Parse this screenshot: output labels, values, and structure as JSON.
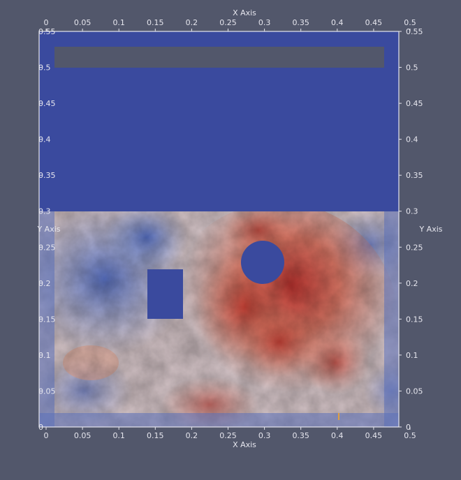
{
  "view": {
    "background": "#52576b",
    "axis_color": "#e6e6ee",
    "x_axis": {
      "title": "X Axis",
      "range": [
        0,
        0.5
      ],
      "ticks": [
        {
          "value": 0,
          "label": "0"
        },
        {
          "value": 0.05,
          "label": "0.05"
        },
        {
          "value": 0.1,
          "label": "0.1"
        },
        {
          "value": 0.15,
          "label": "0.15"
        },
        {
          "value": 0.2,
          "label": "0.2"
        },
        {
          "value": 0.25,
          "label": "0.25"
        },
        {
          "value": 0.3,
          "label": "0.3"
        },
        {
          "value": 0.35,
          "label": "0.35"
        },
        {
          "value": 0.4,
          "label": "0.4"
        },
        {
          "value": 0.45,
          "label": "0.45"
        },
        {
          "value": 0.5,
          "label": "0.5"
        }
      ]
    },
    "y_axis": {
      "title": "Y Axis",
      "range": [
        0,
        0.55
      ],
      "ticks": [
        {
          "value": 0,
          "label": "0"
        },
        {
          "value": 0.05,
          "label": "0.05"
        },
        {
          "value": 0.1,
          "label": "0.1"
        },
        {
          "value": 0.15,
          "label": "0.15"
        },
        {
          "value": 0.2,
          "label": "0.2"
        },
        {
          "value": 0.25,
          "label": "0.25"
        },
        {
          "value": 0.3,
          "label": "0.3"
        },
        {
          "value": 0.35,
          "label": "0.35"
        },
        {
          "value": 0.4,
          "label": "0.4"
        },
        {
          "value": 0.45,
          "label": "0.45"
        },
        {
          "value": 0.5,
          "label": "0.5"
        },
        {
          "value": 0.55,
          "label": "0.55"
        }
      ]
    },
    "field_colors": {
      "solid_blue": "#3a4a9e",
      "cool": "#5a78c8",
      "neutral": "#d9c9c2",
      "warm": "#d98068",
      "hot": "#b52a26"
    }
  }
}
